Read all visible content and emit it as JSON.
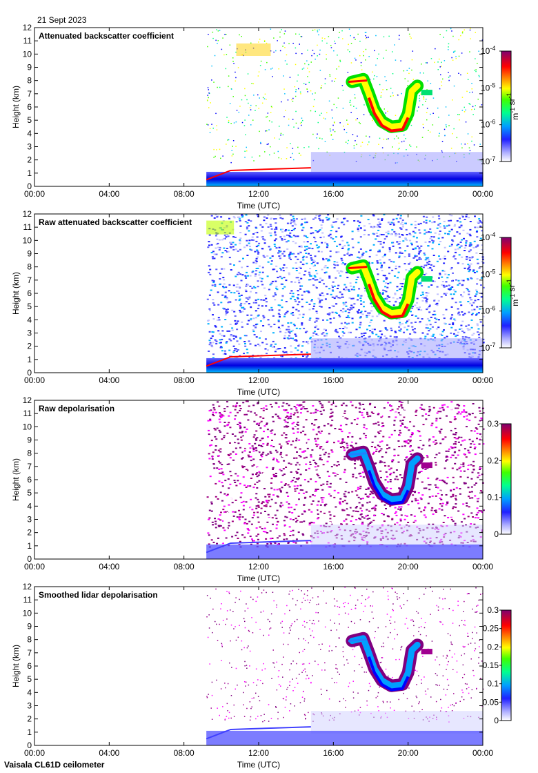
{
  "date_label": "21 Sept 2023",
  "footer": "Vaisala CL61D ceilometer",
  "colors": {
    "rainbow": [
      "#e8e8ff",
      "#9090ff",
      "#0000ff",
      "#00c8ff",
      "#00ff80",
      "#40ff00",
      "#ffff00",
      "#ff8000",
      "#ff0000",
      "#c00040",
      "#800080"
    ],
    "background": "#ffffff"
  },
  "chart_data": [
    {
      "type": "heatmap",
      "title": "Attenuated backscatter coefficient",
      "xlabel": "Time (UTC)",
      "ylabel": "Height (km)",
      "xticks": [
        "00:00",
        "04:00",
        "08:00",
        "12:00",
        "16:00",
        "20:00",
        "00:00"
      ],
      "xlim_hours": [
        0,
        24
      ],
      "ylim": [
        0,
        12
      ],
      "yticks": [
        0,
        1,
        2,
        3,
        4,
        5,
        6,
        7,
        8,
        9,
        10,
        11,
        12
      ],
      "data_start_hour": 9.2,
      "colorbar": {
        "scale": "log",
        "ticks": [
          "10^-7",
          "10^-6",
          "10^-5",
          "10^-4"
        ],
        "label": "m^-1 sr^-1"
      },
      "features": [
        {
          "name": "boundary layer",
          "start_hour": 9.2,
          "end_hour": 24,
          "top_km": 1.0
        },
        {
          "name": "low cloud layer",
          "start_hour": 9.2,
          "end_hour": 14.8,
          "height_km": 1.3
        },
        {
          "name": "cirrus",
          "start_hour": 16.8,
          "end_hour": 21.2,
          "top_km": 8.2,
          "base_km": 4.3
        }
      ]
    },
    {
      "type": "heatmap",
      "title": "Raw attenuated backscatter coefficient",
      "xlabel": "Time (UTC)",
      "ylabel": "Height (km)",
      "xticks": [
        "00:00",
        "04:00",
        "08:00",
        "12:00",
        "16:00",
        "20:00",
        "00:00"
      ],
      "xlim_hours": [
        0,
        24
      ],
      "ylim": [
        0,
        12
      ],
      "yticks": [
        0,
        1,
        2,
        3,
        4,
        5,
        6,
        7,
        8,
        9,
        10,
        11,
        12
      ],
      "data_start_hour": 9.2,
      "colorbar": {
        "scale": "log",
        "ticks": [
          "10^-7",
          "10^-6",
          "10^-5",
          "10^-4"
        ],
        "label": "m^-1 sr^-1"
      }
    },
    {
      "type": "heatmap",
      "title": "Raw depolarisation",
      "xlabel": "Time (UTC)",
      "ylabel": "Height (km)",
      "xticks": [
        "00:00",
        "04:00",
        "08:00",
        "12:00",
        "16:00",
        "20:00",
        "00:00"
      ],
      "xlim_hours": [
        0,
        24
      ],
      "ylim": [
        0,
        12
      ],
      "yticks": [
        0,
        1,
        2,
        3,
        4,
        5,
        6,
        7,
        8,
        9,
        10,
        11,
        12
      ],
      "data_start_hour": 9.2,
      "colorbar": {
        "scale": "linear",
        "ticks": [
          "0",
          "0.1",
          "0.2",
          "0.3"
        ],
        "range": [
          0,
          0.3
        ],
        "label": ""
      }
    },
    {
      "type": "heatmap",
      "title": "Smoothed lidar depolarisation",
      "xlabel": "Time (UTC)",
      "ylabel": "Height (km)",
      "xticks": [
        "00:00",
        "04:00",
        "08:00",
        "12:00",
        "16:00",
        "20:00",
        "00:00"
      ],
      "xlim_hours": [
        0,
        24
      ],
      "ylim": [
        0,
        12
      ],
      "yticks": [
        0,
        1,
        2,
        3,
        4,
        5,
        6,
        7,
        8,
        9,
        10,
        11,
        12
      ],
      "data_start_hour": 9.2,
      "colorbar": {
        "scale": "linear",
        "ticks": [
          "0",
          "0.05",
          "0.1",
          "0.15",
          "0.2",
          "0.25",
          "0.3"
        ],
        "range": [
          0,
          0.3
        ],
        "label": ""
      }
    }
  ]
}
